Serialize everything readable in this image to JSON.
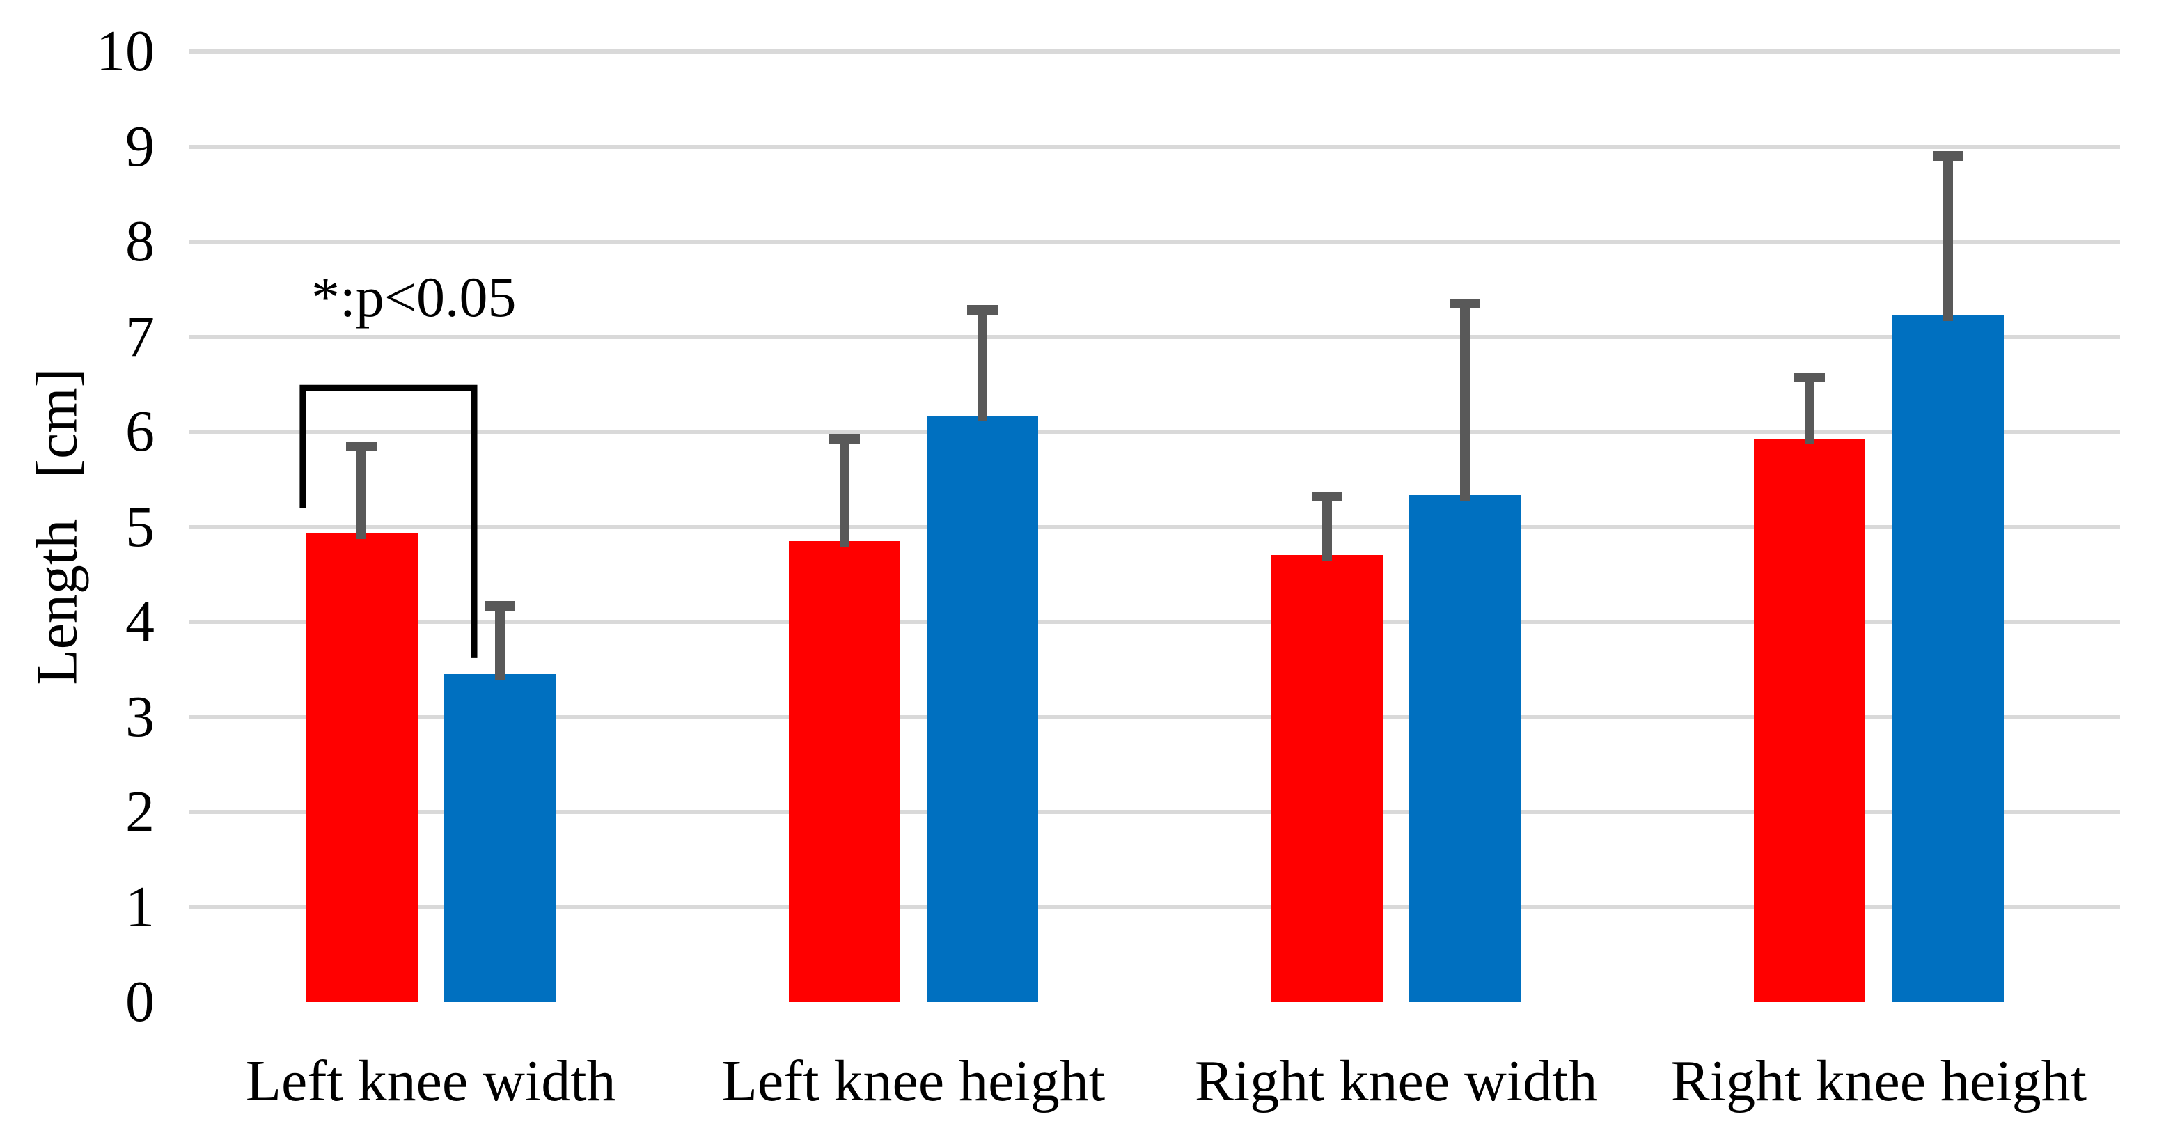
{
  "chart_data": {
    "type": "bar",
    "title": "",
    "categories": [
      "Left knee width",
      "Left knee height",
      "Right knee width",
      "Right knee height"
    ],
    "series": [
      {
        "name": "red",
        "color": "#FF0000",
        "values": [
          4.93,
          4.85,
          4.7,
          5.93
        ],
        "error_upper": [
          0.97,
          1.13,
          0.67,
          0.69
        ]
      },
      {
        "name": "blue",
        "color": "#0070C0",
        "values": [
          3.45,
          6.17,
          5.33,
          7.22
        ],
        "error_upper": [
          0.77,
          1.16,
          2.07,
          1.73
        ]
      }
    ],
    "ylabel": "Length [cm]",
    "ylim": [
      0,
      10
    ],
    "yticks": [
      0,
      1,
      2,
      3,
      4,
      5,
      6,
      7,
      8,
      9,
      10
    ],
    "grid": true,
    "legend": "none",
    "colors": {
      "error_bar": "#595959",
      "gridline": "#D9D9D9",
      "text": "#000000",
      "background": "#FFFFFF"
    },
    "annotation": {
      "text": "*:p<0.05",
      "significance_bracket": {
        "category": "Left knee width",
        "top_value": 6.46,
        "left_leg_bottom_value": 5.2,
        "right_leg_bottom_value": 3.62
      }
    }
  }
}
